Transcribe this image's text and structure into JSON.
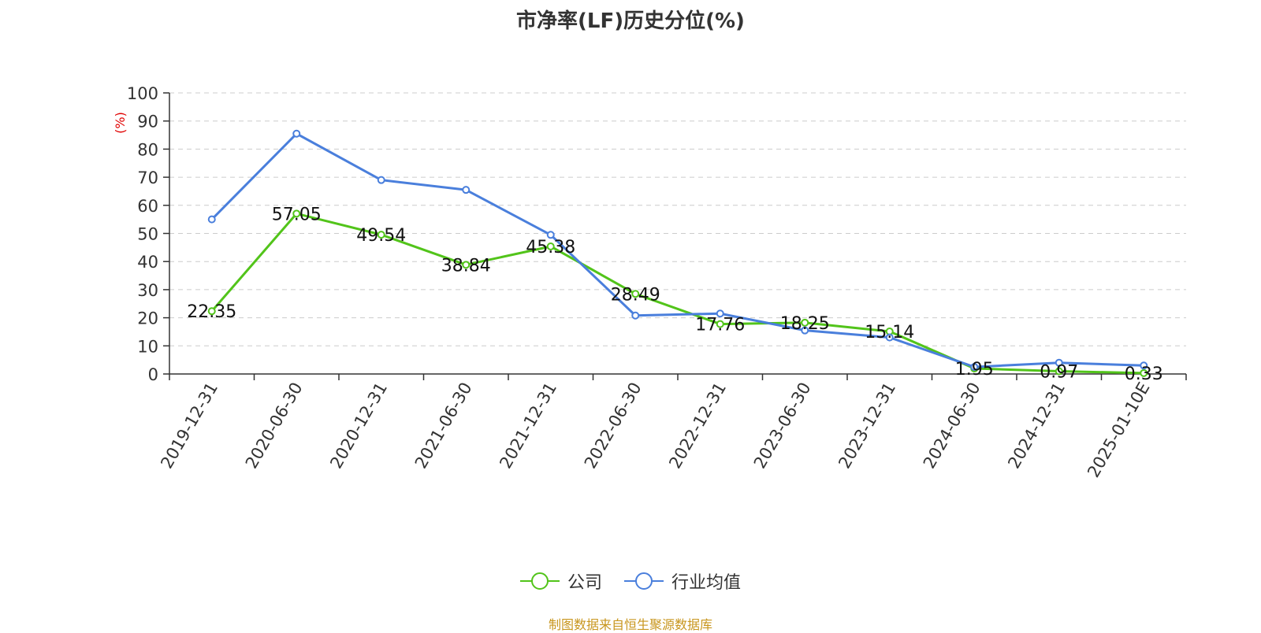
{
  "chart_data": {
    "type": "line",
    "title": "市净率(LF)历史分位(%)",
    "ylabel": "(%)",
    "xlabel": "",
    "ylim": [
      0,
      100
    ],
    "yticks": [
      0,
      10,
      20,
      30,
      40,
      50,
      60,
      70,
      80,
      90,
      100
    ],
    "categories": [
      "2019-12-31",
      "2020-06-30",
      "2020-12-31",
      "2021-06-30",
      "2021-12-31",
      "2022-06-30",
      "2022-12-31",
      "2023-06-30",
      "2023-12-31",
      "2024-06-30",
      "2024-12-31",
      "2025-01-10E"
    ],
    "grid": true,
    "legend_position": "bottom",
    "series": [
      {
        "name": "公司",
        "color": "#52c41a",
        "values": [
          22.35,
          57.05,
          49.54,
          38.84,
          45.38,
          28.49,
          17.76,
          18.25,
          15.14,
          1.95,
          0.97,
          0.33
        ],
        "labels": [
          "22.35",
          "57.05",
          "49.54",
          "38.84",
          "45.38",
          "28.49",
          "17.76",
          "18.25",
          "15.14",
          "1.95",
          "0.97",
          "0.33"
        ]
      },
      {
        "name": "行业均值",
        "color": "#4a7fdc",
        "values": [
          55,
          85.5,
          69,
          65.5,
          49.5,
          20.8,
          21.5,
          15.5,
          13,
          2.5,
          4,
          3
        ]
      }
    ]
  },
  "source": "制图数据来自恒生聚源数据库"
}
